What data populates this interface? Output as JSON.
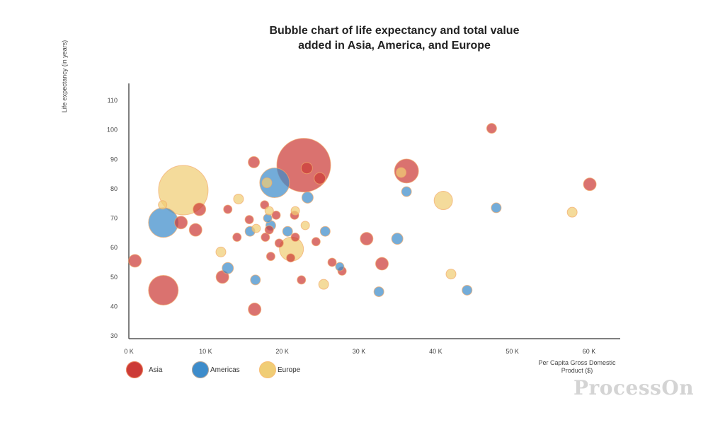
{
  "chart_data": {
    "type": "scatter",
    "title": "Bubble chart of life expectancy and total value added in Asia, America, and Europe",
    "xlabel": "Per Capita Gross Domestic Product ($)",
    "ylabel": "Life expectancy (in years)",
    "xlim": [
      0,
      64000
    ],
    "ylim": [
      30,
      115
    ],
    "xticks": [
      "0 K",
      "10 K",
      "20 K",
      "30 K",
      "40 K",
      "50 K",
      "60 K"
    ],
    "yticks": [
      "30",
      "40",
      "50",
      "60",
      "70",
      "80",
      "90",
      "100",
      "110"
    ],
    "legend_position": "bottom-left",
    "grid": false,
    "series": [
      {
        "name": "Asia",
        "color": "#cc3b37",
        "points": [
          {
            "x": 22800,
            "y": 88,
            "size": 38
          },
          {
            "x": 4500,
            "y": 45.5,
            "size": 21
          },
          {
            "x": 36200,
            "y": 86,
            "size": 17
          },
          {
            "x": 800,
            "y": 55.5,
            "size": 9
          },
          {
            "x": 6800,
            "y": 68.5,
            "size": 9
          },
          {
            "x": 9200,
            "y": 73,
            "size": 9
          },
          {
            "x": 8700,
            "y": 66,
            "size": 9
          },
          {
            "x": 12200,
            "y": 50,
            "size": 9
          },
          {
            "x": 16400,
            "y": 39,
            "size": 9
          },
          {
            "x": 16300,
            "y": 89,
            "size": 8
          },
          {
            "x": 23200,
            "y": 87,
            "size": 8
          },
          {
            "x": 24900,
            "y": 83.5,
            "size": 8
          },
          {
            "x": 31000,
            "y": 63,
            "size": 9
          },
          {
            "x": 33000,
            "y": 54.5,
            "size": 9
          },
          {
            "x": 47300,
            "y": 100.5,
            "size": 7
          },
          {
            "x": 60100,
            "y": 81.5,
            "size": 9
          },
          {
            "x": 12900,
            "y": 73,
            "size": 6
          },
          {
            "x": 14100,
            "y": 63.5,
            "size": 6
          },
          {
            "x": 15700,
            "y": 69.5,
            "size": 6
          },
          {
            "x": 17700,
            "y": 74.5,
            "size": 6
          },
          {
            "x": 17800,
            "y": 63.5,
            "size": 6
          },
          {
            "x": 18300,
            "y": 66,
            "size": 6
          },
          {
            "x": 18500,
            "y": 57,
            "size": 6
          },
          {
            "x": 19200,
            "y": 71,
            "size": 6
          },
          {
            "x": 19600,
            "y": 61.5,
            "size": 6
          },
          {
            "x": 21100,
            "y": 56.5,
            "size": 6
          },
          {
            "x": 21600,
            "y": 71,
            "size": 6
          },
          {
            "x": 21700,
            "y": 63.5,
            "size": 6
          },
          {
            "x": 22500,
            "y": 49,
            "size": 6
          },
          {
            "x": 24400,
            "y": 62,
            "size": 6
          },
          {
            "x": 26500,
            "y": 55,
            "size": 6
          },
          {
            "x": 27800,
            "y": 52,
            "size": 6
          }
        ]
      },
      {
        "name": "Americas",
        "color": "#3d8ccb",
        "points": [
          {
            "x": 19000,
            "y": 82,
            "size": 21
          },
          {
            "x": 4500,
            "y": 68.5,
            "size": 21
          },
          {
            "x": 23300,
            "y": 77,
            "size": 8
          },
          {
            "x": 36200,
            "y": 79,
            "size": 7
          },
          {
            "x": 47900,
            "y": 73.5,
            "size": 7
          },
          {
            "x": 35000,
            "y": 63,
            "size": 8
          },
          {
            "x": 12900,
            "y": 53,
            "size": 8
          },
          {
            "x": 16500,
            "y": 49,
            "size": 7
          },
          {
            "x": 32600,
            "y": 45,
            "size": 7
          },
          {
            "x": 44100,
            "y": 45.5,
            "size": 7
          },
          {
            "x": 25600,
            "y": 65.5,
            "size": 7
          },
          {
            "x": 27500,
            "y": 53.5,
            "size": 6
          },
          {
            "x": 15800,
            "y": 65.5,
            "size": 7
          },
          {
            "x": 18100,
            "y": 70,
            "size": 6
          },
          {
            "x": 18500,
            "y": 67.5,
            "size": 7
          },
          {
            "x": 20700,
            "y": 65.5,
            "size": 7
          }
        ]
      },
      {
        "name": "Europe",
        "color": "#f0cd75",
        "points": [
          {
            "x": 7100,
            "y": 79.5,
            "size": 35
          },
          {
            "x": 21200,
            "y": 59.5,
            "size": 17
          },
          {
            "x": 41000,
            "y": 76,
            "size": 13
          },
          {
            "x": 14300,
            "y": 76.5,
            "size": 7
          },
          {
            "x": 18000,
            "y": 82,
            "size": 7
          },
          {
            "x": 35500,
            "y": 85.5,
            "size": 7
          },
          {
            "x": 57800,
            "y": 72,
            "size": 7
          },
          {
            "x": 42000,
            "y": 51,
            "size": 7
          },
          {
            "x": 25400,
            "y": 47.5,
            "size": 7
          },
          {
            "x": 12000,
            "y": 58.5,
            "size": 7
          },
          {
            "x": 4400,
            "y": 74.5,
            "size": 6
          },
          {
            "x": 16600,
            "y": 66.5,
            "size": 6
          },
          {
            "x": 18300,
            "y": 72.5,
            "size": 6
          },
          {
            "x": 21700,
            "y": 72.5,
            "size": 6
          },
          {
            "x": 23000,
            "y": 67.5,
            "size": 6
          }
        ]
      }
    ]
  },
  "legend": {
    "items": [
      {
        "label": "Asia",
        "color": "#cc3b37"
      },
      {
        "label": "Americas",
        "color": "#3d8ccb"
      },
      {
        "label": "Europe",
        "color": "#f0cd75"
      }
    ]
  },
  "watermark": "ProcessOn"
}
